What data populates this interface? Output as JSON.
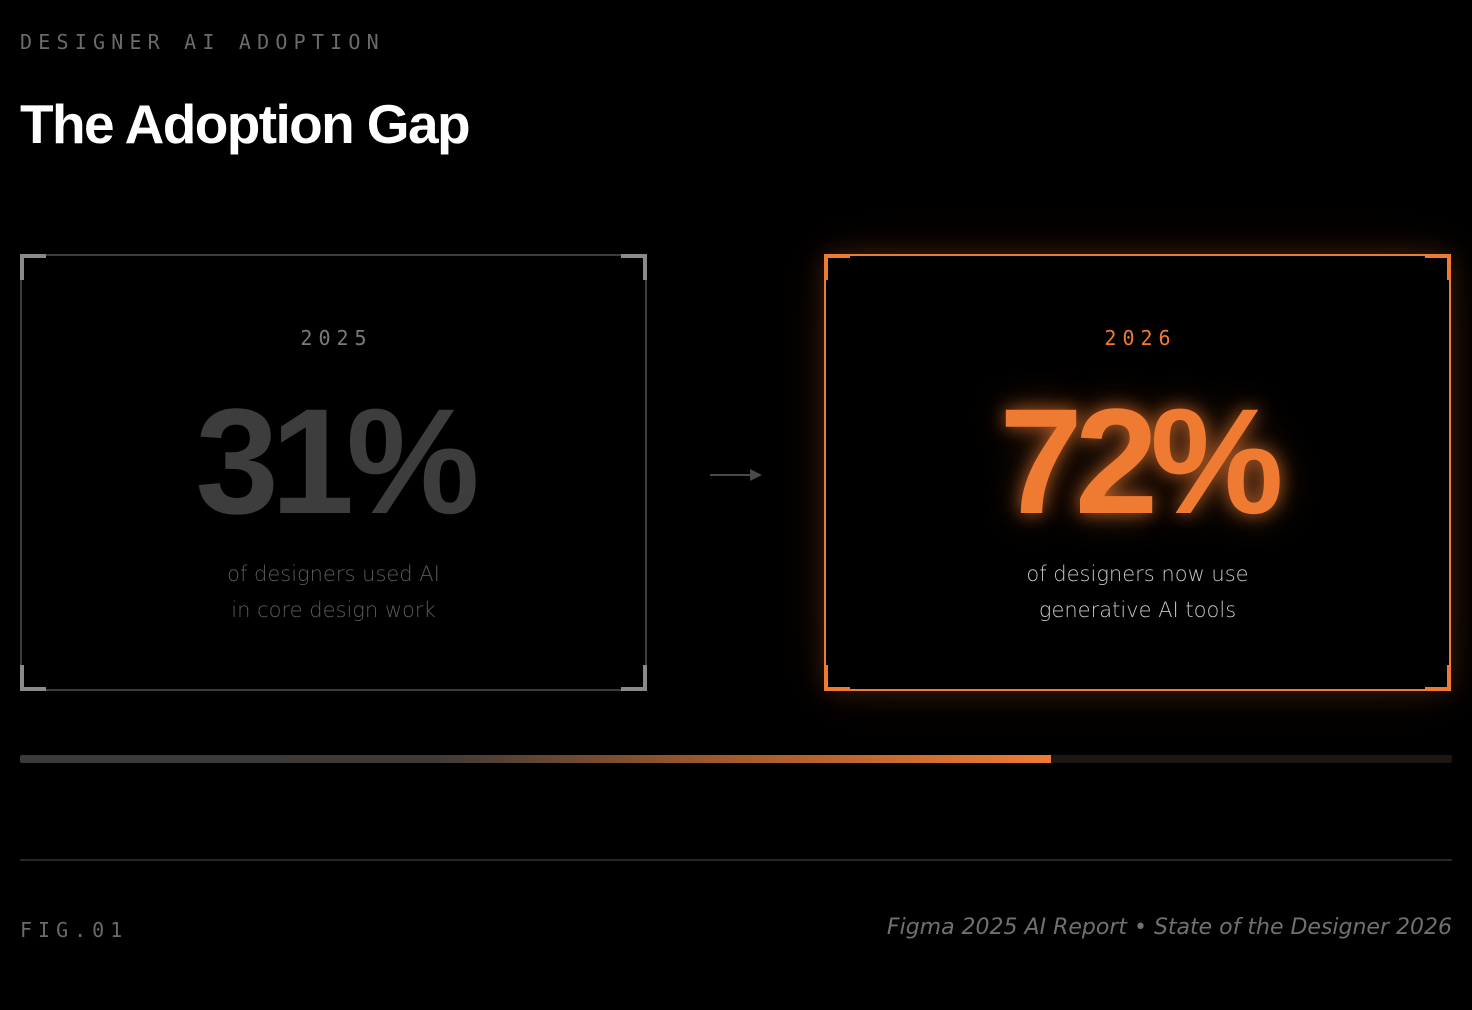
{
  "header": {
    "eyebrow": "DESIGNER AI ADOPTION",
    "title": "The Adoption Gap"
  },
  "cards": {
    "before": {
      "year": "2025",
      "value": "31%",
      "desc_line1": "of designers used AI",
      "desc_line2": "in core design work"
    },
    "after": {
      "year": "2026",
      "value": "72%",
      "desc_line1": "of designers now use",
      "desc_line2": "generative AI tools"
    }
  },
  "icons": {
    "arrow": "arrow-right-icon"
  },
  "progress": {
    "fraction": 0.72
  },
  "footer": {
    "figure": "FIG.01",
    "source": "Figma 2025 AI Report • State of the Designer 2026"
  },
  "colors": {
    "background": "#000000",
    "accent": "#ef7b33",
    "muted": "#3d3d3d"
  }
}
